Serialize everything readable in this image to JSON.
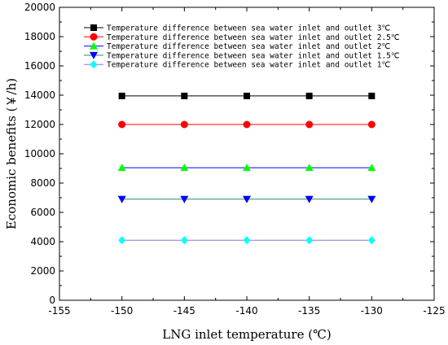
{
  "chart_data": {
    "type": "line",
    "title": "",
    "xlabel": "LNG inlet temperature (℃)",
    "ylabel": "Economic benefits (￥/h)",
    "xlim": [
      -155,
      -125
    ],
    "ylim": [
      0,
      20000
    ],
    "x_major_ticks": [
      -155,
      -150,
      -145,
      -140,
      -135,
      -130,
      -125
    ],
    "y_major_ticks": [
      0,
      2000,
      4000,
      6000,
      8000,
      10000,
      12000,
      14000,
      16000,
      18000,
      20000
    ],
    "x": [
      -150,
      -145,
      -140,
      -135,
      -130
    ],
    "grid": false,
    "legend_position": "top-left",
    "series": [
      {
        "name": "Temperature difference between sea water inlet and outlet 3℃",
        "values": [
          13950,
          13950,
          13950,
          13950,
          13950
        ],
        "color": "#000000",
        "line_color": "#000000",
        "marker": "square"
      },
      {
        "name": "Temperature difference between sea water inlet and outlet 2.5℃",
        "values": [
          12000,
          12000,
          12000,
          12000,
          12000
        ],
        "color": "#ff0000",
        "line_color": "#ff0000",
        "marker": "circle"
      },
      {
        "name": "Temperature difference between sea water inlet and outlet 2℃",
        "values": [
          9050,
          9050,
          9050,
          9050,
          9050
        ],
        "color": "#00ff00",
        "line_color": "#0000ff",
        "marker": "triangle-up"
      },
      {
        "name": "Temperature difference between sea water inlet and outlet 1.5℃",
        "values": [
          6900,
          6900,
          6900,
          6900,
          6900
        ],
        "color": "#0000ff",
        "line_color": "#2e8b57",
        "marker": "triangle-down"
      },
      {
        "name": "Temperature difference between sea water inlet and outlet 1℃",
        "values": [
          4100,
          4100,
          4100,
          4100,
          4100
        ],
        "color": "#00ffff",
        "line_color": "#9370db",
        "marker": "diamond"
      }
    ]
  }
}
